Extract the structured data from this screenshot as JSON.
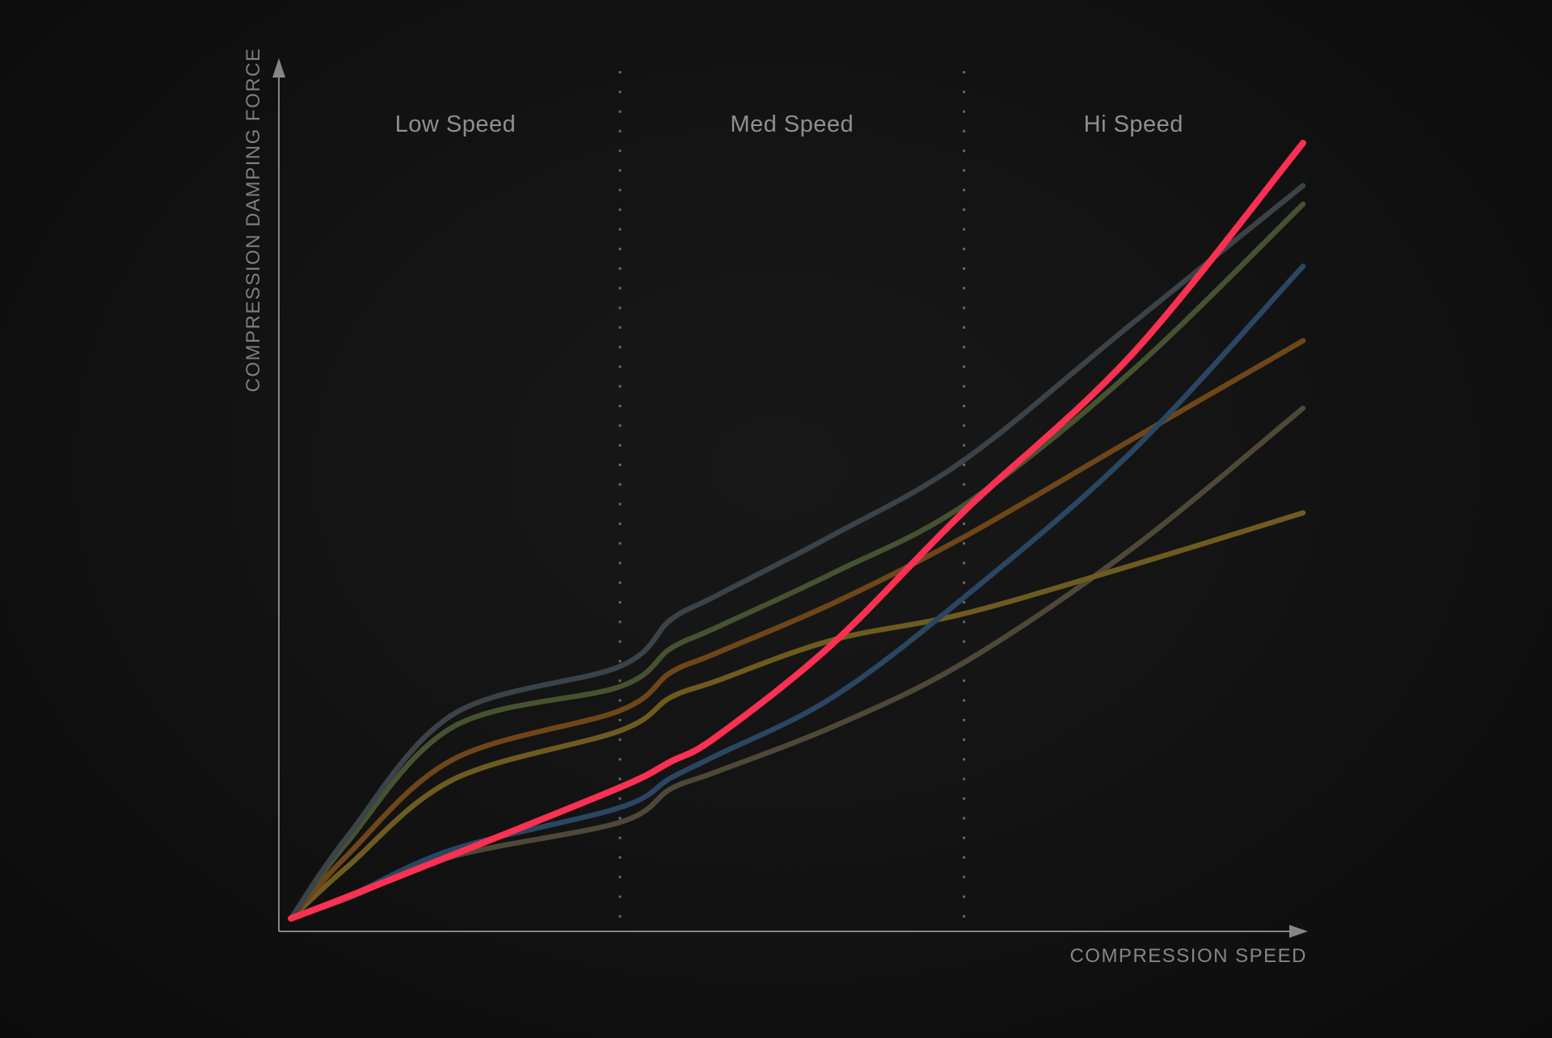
{
  "chart_data": {
    "type": "line",
    "title": "",
    "xlabel": "COMPRESSION SPEED",
    "ylabel": "COMPRESSION DAMPING FORCE",
    "legend_position": "none",
    "grid": false,
    "axis_color": "#868686",
    "separator_color": "#b9b9b9",
    "zone_label_color": "#8f8f8f",
    "accent_color": "#ff3052",
    "x_range_pct": [
      0,
      100
    ],
    "y_range_pct": [
      0,
      100
    ],
    "zones": [
      {
        "label": "Low Speed",
        "from_pct": 0,
        "to_pct": 32.5
      },
      {
        "label": "Med Speed",
        "from_pct": 32.5,
        "to_pct": 66.5
      },
      {
        "label": "Hi Speed",
        "from_pct": 66.5,
        "to_pct": 100
      }
    ],
    "x_pct": [
      0,
      5.6,
      16,
      32.5,
      37.5,
      42,
      53.5,
      66.5,
      83,
      100
    ],
    "y_unit": "relative damping force (percent of highlighted-curve maximum)",
    "series": [
      {
        "name": "taupe-curve",
        "color": "#4e4839",
        "width": 6.5,
        "values": [
          0,
          2.6,
          8.0,
          12.4,
          16.7,
          18.9,
          24.7,
          33.0,
          47.6,
          65.8
        ]
      },
      {
        "name": "khaki-curve",
        "color": "#6d5b20",
        "width": 6.5,
        "values": [
          0,
          6.7,
          17.9,
          24.2,
          28.5,
          30.6,
          35.9,
          39.3,
          45.5,
          52.3
        ]
      },
      {
        "name": "brown-curve",
        "color": "#6f4619",
        "width": 6.5,
        "values": [
          0,
          8.2,
          20.5,
          26.8,
          31.7,
          34.2,
          40.6,
          49.2,
          61.7,
          74.5
        ]
      },
      {
        "name": "olive-green-curve",
        "color": "#465230",
        "width": 6.5,
        "values": [
          0,
          9.9,
          24.7,
          29.9,
          34.8,
          37.5,
          44.5,
          53.3,
          70.5,
          92.1
        ]
      },
      {
        "name": "slate-gray-curve",
        "color": "#3b4248",
        "width": 6.5,
        "values": [
          0,
          10.6,
          26.3,
          32.5,
          38.5,
          41.6,
          49.4,
          59.1,
          76.6,
          94.5
        ]
      },
      {
        "name": "steel-blue-curve",
        "color": "#2a4662",
        "width": 6.5,
        "values": [
          0,
          2.8,
          8.9,
          14.3,
          18.1,
          21.0,
          28.5,
          41.4,
          60.1,
          84.1
        ]
      },
      {
        "name": "red-highlight-curve",
        "color": "#ff3052",
        "width": 8,
        "values": [
          0,
          2.8,
          8.2,
          16.9,
          20.2,
          23.4,
          35.4,
          52.5,
          72.6,
          100
        ]
      }
    ]
  }
}
